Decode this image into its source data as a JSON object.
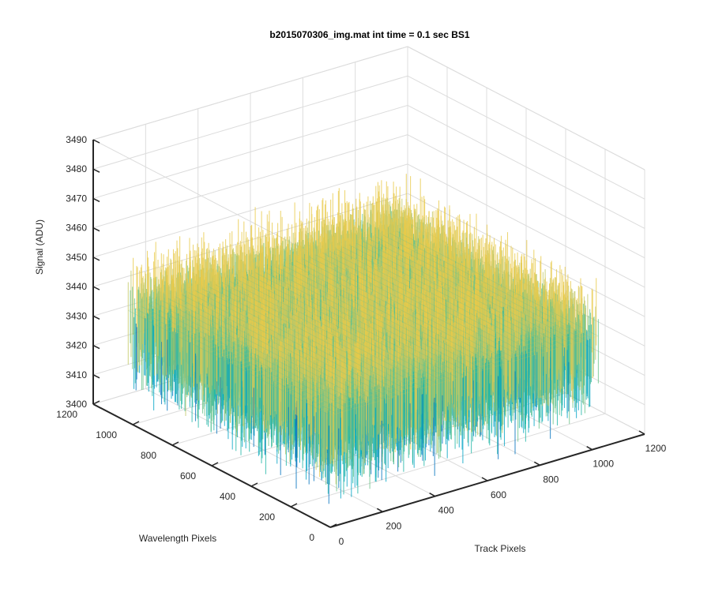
{
  "chart_data": {
    "type": "surface",
    "title": "b2015070306_img.mat int time = 0.1 sec   BS1",
    "xlabel": "Track Pixels",
    "ylabel": "Wavelength Pixels",
    "zlabel": "Signal (ADU)",
    "xlim": [
      0,
      1200
    ],
    "ylim": [
      0,
      1200
    ],
    "zlim": [
      3400,
      3490
    ],
    "xticks": [
      "0",
      "200",
      "400",
      "600",
      "800",
      "1000",
      "1200"
    ],
    "yticks": [
      "0",
      "200",
      "400",
      "600",
      "800",
      "1000",
      "1200"
    ],
    "zticks": [
      "3400",
      "3410",
      "3420",
      "3430",
      "3440",
      "3450",
      "3460",
      "3470",
      "3480",
      "3490"
    ],
    "surface_extent": {
      "x": [
        1,
        1024
      ],
      "y": [
        1,
        1024
      ]
    },
    "signal_mean": 3436,
    "signal_range": [
      3405,
      3480
    ],
    "grid": true,
    "view": "isometric",
    "colormap": [
      "#0072bd",
      "#00a3c4",
      "#1fb5a5",
      "#6cc38a",
      "#c2c867",
      "#e8c94a"
    ]
  }
}
